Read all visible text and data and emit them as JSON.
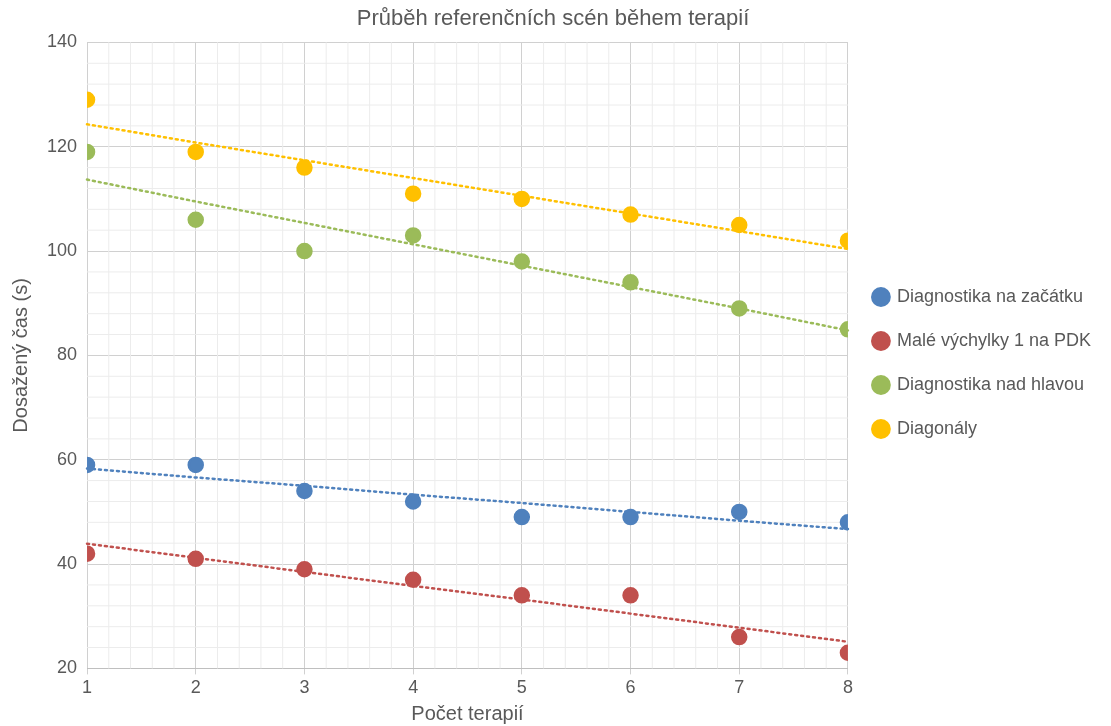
{
  "chart_data": {
    "type": "scatter",
    "title": "Průběh referenčních scén během terapií",
    "xlabel": "Počet terapií",
    "ylabel": "Dosažený čas (s)",
    "x": [
      1,
      2,
      3,
      4,
      5,
      6,
      7,
      8
    ],
    "series": [
      {
        "name": "Diagnostika na začátku",
        "color": "#4f81bd",
        "values": [
          59,
          59,
          54,
          52,
          49,
          49,
          50,
          48
        ]
      },
      {
        "name": "Malé výchylky 1 na PDK",
        "color": "#c0504d",
        "values": [
          42,
          41,
          39,
          37,
          34,
          34,
          26,
          23
        ]
      },
      {
        "name": "Diagnostika nad hlavou",
        "color": "#9bbb59",
        "values": [
          119,
          106,
          100,
          103,
          98,
          94,
          89,
          85
        ]
      },
      {
        "name": "Diagonály",
        "color": "#ffc000",
        "values": [
          129,
          119,
          116,
          111,
          110,
          107,
          105,
          102
        ]
      },
      {
        "type": "line",
        "color": "#4f81bd",
        "values": [
          58.3,
          56.6,
          55.0,
          53.3,
          51.7,
          50.0,
          48.3,
          46.7
        ],
        "line_style": "dotted",
        "marker": "none"
      },
      {
        "type": "line",
        "color": "#c0504d",
        "values": [
          43.9,
          41.2,
          38.5,
          35.8,
          33.2,
          30.5,
          27.8,
          25.1
        ],
        "line_style": "dotted",
        "marker": "none"
      },
      {
        "type": "line",
        "color": "#9bbb59",
        "values": [
          113.7,
          109.5,
          105.4,
          101.3,
          97.2,
          93.1,
          89.0,
          84.8
        ],
        "line_style": "dotted",
        "marker": "none"
      },
      {
        "type": "line",
        "color": "#ffc000",
        "values": [
          124.3,
          120.8,
          117.4,
          114.0,
          110.6,
          107.2,
          103.8,
          100.4
        ],
        "line_style": "dotted",
        "marker": "none"
      }
    ],
    "xlim": [
      1,
      8
    ],
    "xticks": [
      1,
      2,
      3,
      4,
      5,
      6,
      7,
      8
    ],
    "ylim": [
      20,
      140
    ],
    "yticks": [
      20,
      40,
      60,
      80,
      100,
      120,
      140
    ],
    "grid": true,
    "legend": "right",
    "marker": "circle"
  }
}
